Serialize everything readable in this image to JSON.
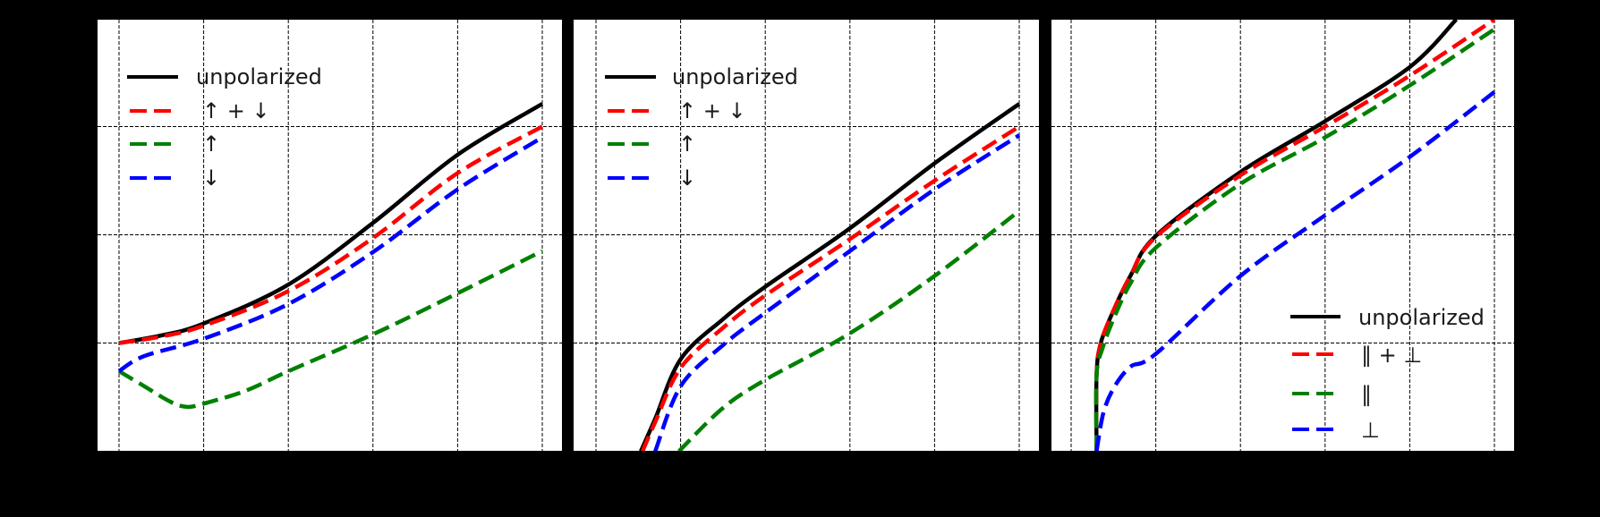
{
  "figure": {
    "background": "#000000",
    "panel_background": "#ffffff",
    "grid": {
      "on": true,
      "style": "dashed",
      "color": "#000000"
    },
    "tick_labels_visible": false
  },
  "chart_data": [
    {
      "type": "line",
      "panel": 1,
      "title": "",
      "xlabel": "",
      "ylabel": "",
      "units_note": "Tick labels not visible; x and y given in gridline-index units (x gridlines at 0..5, y gridlines at 1..3)",
      "xlim": [
        -0.25,
        5.2
      ],
      "ylim": [
        0,
        3.98
      ],
      "legend": {
        "position": "upper left",
        "entries": [
          "unpolarized",
          "↑ + ↓",
          "↑",
          "↓"
        ]
      },
      "series": [
        {
          "name": "unpolarized",
          "color": "#000000",
          "style": "solid",
          "x": [
            0,
            0.5,
            1,
            2,
            3,
            4,
            5
          ],
          "y": [
            1.0,
            1.07,
            1.18,
            1.54,
            2.11,
            2.74,
            3.21
          ]
        },
        {
          "name": "↑ + ↓",
          "color": "#ff0000",
          "style": "dashed",
          "x": [
            0,
            0.5,
            1,
            2,
            3,
            4,
            5
          ],
          "y": [
            1.0,
            1.06,
            1.16,
            1.48,
            1.97,
            2.57,
            3.0
          ]
        },
        {
          "name": "↑",
          "color": "#008000",
          "style": "dashed",
          "x": [
            0,
            0.3,
            0.6,
            0.8,
            1,
            1.5,
            2,
            3,
            4,
            5
          ],
          "y": [
            0.74,
            0.6,
            0.46,
            0.41,
            0.44,
            0.56,
            0.74,
            1.08,
            1.46,
            1.85
          ]
        },
        {
          "name": "↓",
          "color": "#0000ff",
          "style": "dashed",
          "x": [
            0,
            0.3,
            1,
            2,
            3,
            4,
            5
          ],
          "y": [
            0.74,
            0.88,
            1.04,
            1.36,
            1.84,
            2.42,
            2.9
          ]
        }
      ]
    },
    {
      "type": "line",
      "panel": 2,
      "title": "",
      "xlabel": "",
      "ylabel": "",
      "xlim": [
        -0.25,
        5.2
      ],
      "ylim": [
        0,
        3.98
      ],
      "legend": {
        "position": "upper left",
        "entries": [
          "unpolarized",
          "↑ + ↓",
          "↑",
          "↓"
        ]
      },
      "series": [
        {
          "name": "unpolarized",
          "color": "#000000",
          "style": "solid",
          "x": [
            0.53,
            0.7,
            1,
            1.5,
            2,
            3,
            4,
            5
          ],
          "y": [
            0,
            0.3,
            0.85,
            1.22,
            1.52,
            2.06,
            2.66,
            3.21
          ]
        },
        {
          "name": "↑ + ↓",
          "color": "#ff0000",
          "style": "dashed",
          "x": [
            0.55,
            0.7,
            1,
            1.5,
            2,
            3,
            4,
            5
          ],
          "y": [
            0,
            0.27,
            0.77,
            1.14,
            1.44,
            1.96,
            2.5,
            3.0
          ]
        },
        {
          "name": "↑",
          "color": "#008000",
          "style": "dashed",
          "x": [
            0.98,
            1.5,
            2,
            3,
            4,
            5
          ],
          "y": [
            0,
            0.4,
            0.66,
            1.09,
            1.62,
            2.22
          ]
        },
        {
          "name": "↓",
          "color": "#0000ff",
          "style": "dashed",
          "x": [
            0.7,
            1,
            1.5,
            2,
            3,
            4,
            5
          ],
          "y": [
            0,
            0.6,
            0.98,
            1.28,
            1.85,
            2.42,
            2.92
          ]
        }
      ]
    },
    {
      "type": "line",
      "panel": 3,
      "title": "",
      "xlabel": "",
      "ylabel": "",
      "xlim": [
        -0.25,
        5.2
      ],
      "ylim": [
        0,
        3.98
      ],
      "legend": {
        "position": "lower right",
        "entries": [
          "unpolarized",
          "∥ + ⊥",
          "∥",
          "⊥"
        ]
      },
      "series": [
        {
          "name": "unpolarized",
          "color": "#000000",
          "style": "solid",
          "x": [
            0.3,
            0.3,
            0.35,
            0.5,
            0.7,
            1,
            2,
            3,
            4,
            4.55
          ],
          "y": [
            0,
            0.7,
            1.0,
            1.3,
            1.62,
            1.99,
            2.58,
            3.05,
            3.55,
            3.99
          ]
        },
        {
          "name": "∥ + ⊥",
          "color": "#ff0000",
          "style": "dashed",
          "x": [
            0.3,
            0.3,
            0.35,
            0.5,
            0.7,
            1,
            2,
            3,
            4,
            5
          ],
          "y": [
            0,
            0.7,
            1.0,
            1.3,
            1.62,
            1.98,
            2.55,
            3.0,
            3.47,
            3.99
          ]
        },
        {
          "name": "∥",
          "color": "#008000",
          "style": "dashed",
          "x": [
            0.3,
            0.3,
            0.37,
            0.5,
            0.7,
            1,
            2,
            3,
            4,
            5
          ],
          "y": [
            0,
            0.7,
            0.95,
            1.22,
            1.55,
            1.88,
            2.47,
            2.9,
            3.38,
            3.9
          ]
        },
        {
          "name": "⊥",
          "color": "#0000ff",
          "style": "dashed",
          "x": [
            0.3,
            0.38,
            0.5,
            0.7,
            1,
            2,
            3,
            4,
            5
          ],
          "y": [
            0,
            0.35,
            0.58,
            0.78,
            0.9,
            1.62,
            2.18,
            2.72,
            3.32
          ]
        }
      ]
    }
  ],
  "legends": {
    "panel1": [
      "unpolarized",
      "↑ + ↓",
      "↑",
      "↓"
    ],
    "panel2": [
      "unpolarized",
      "↑ + ↓",
      "↑",
      "↓"
    ],
    "panel3": [
      "unpolarized",
      "∥ + ⊥",
      "∥",
      "⊥"
    ]
  }
}
